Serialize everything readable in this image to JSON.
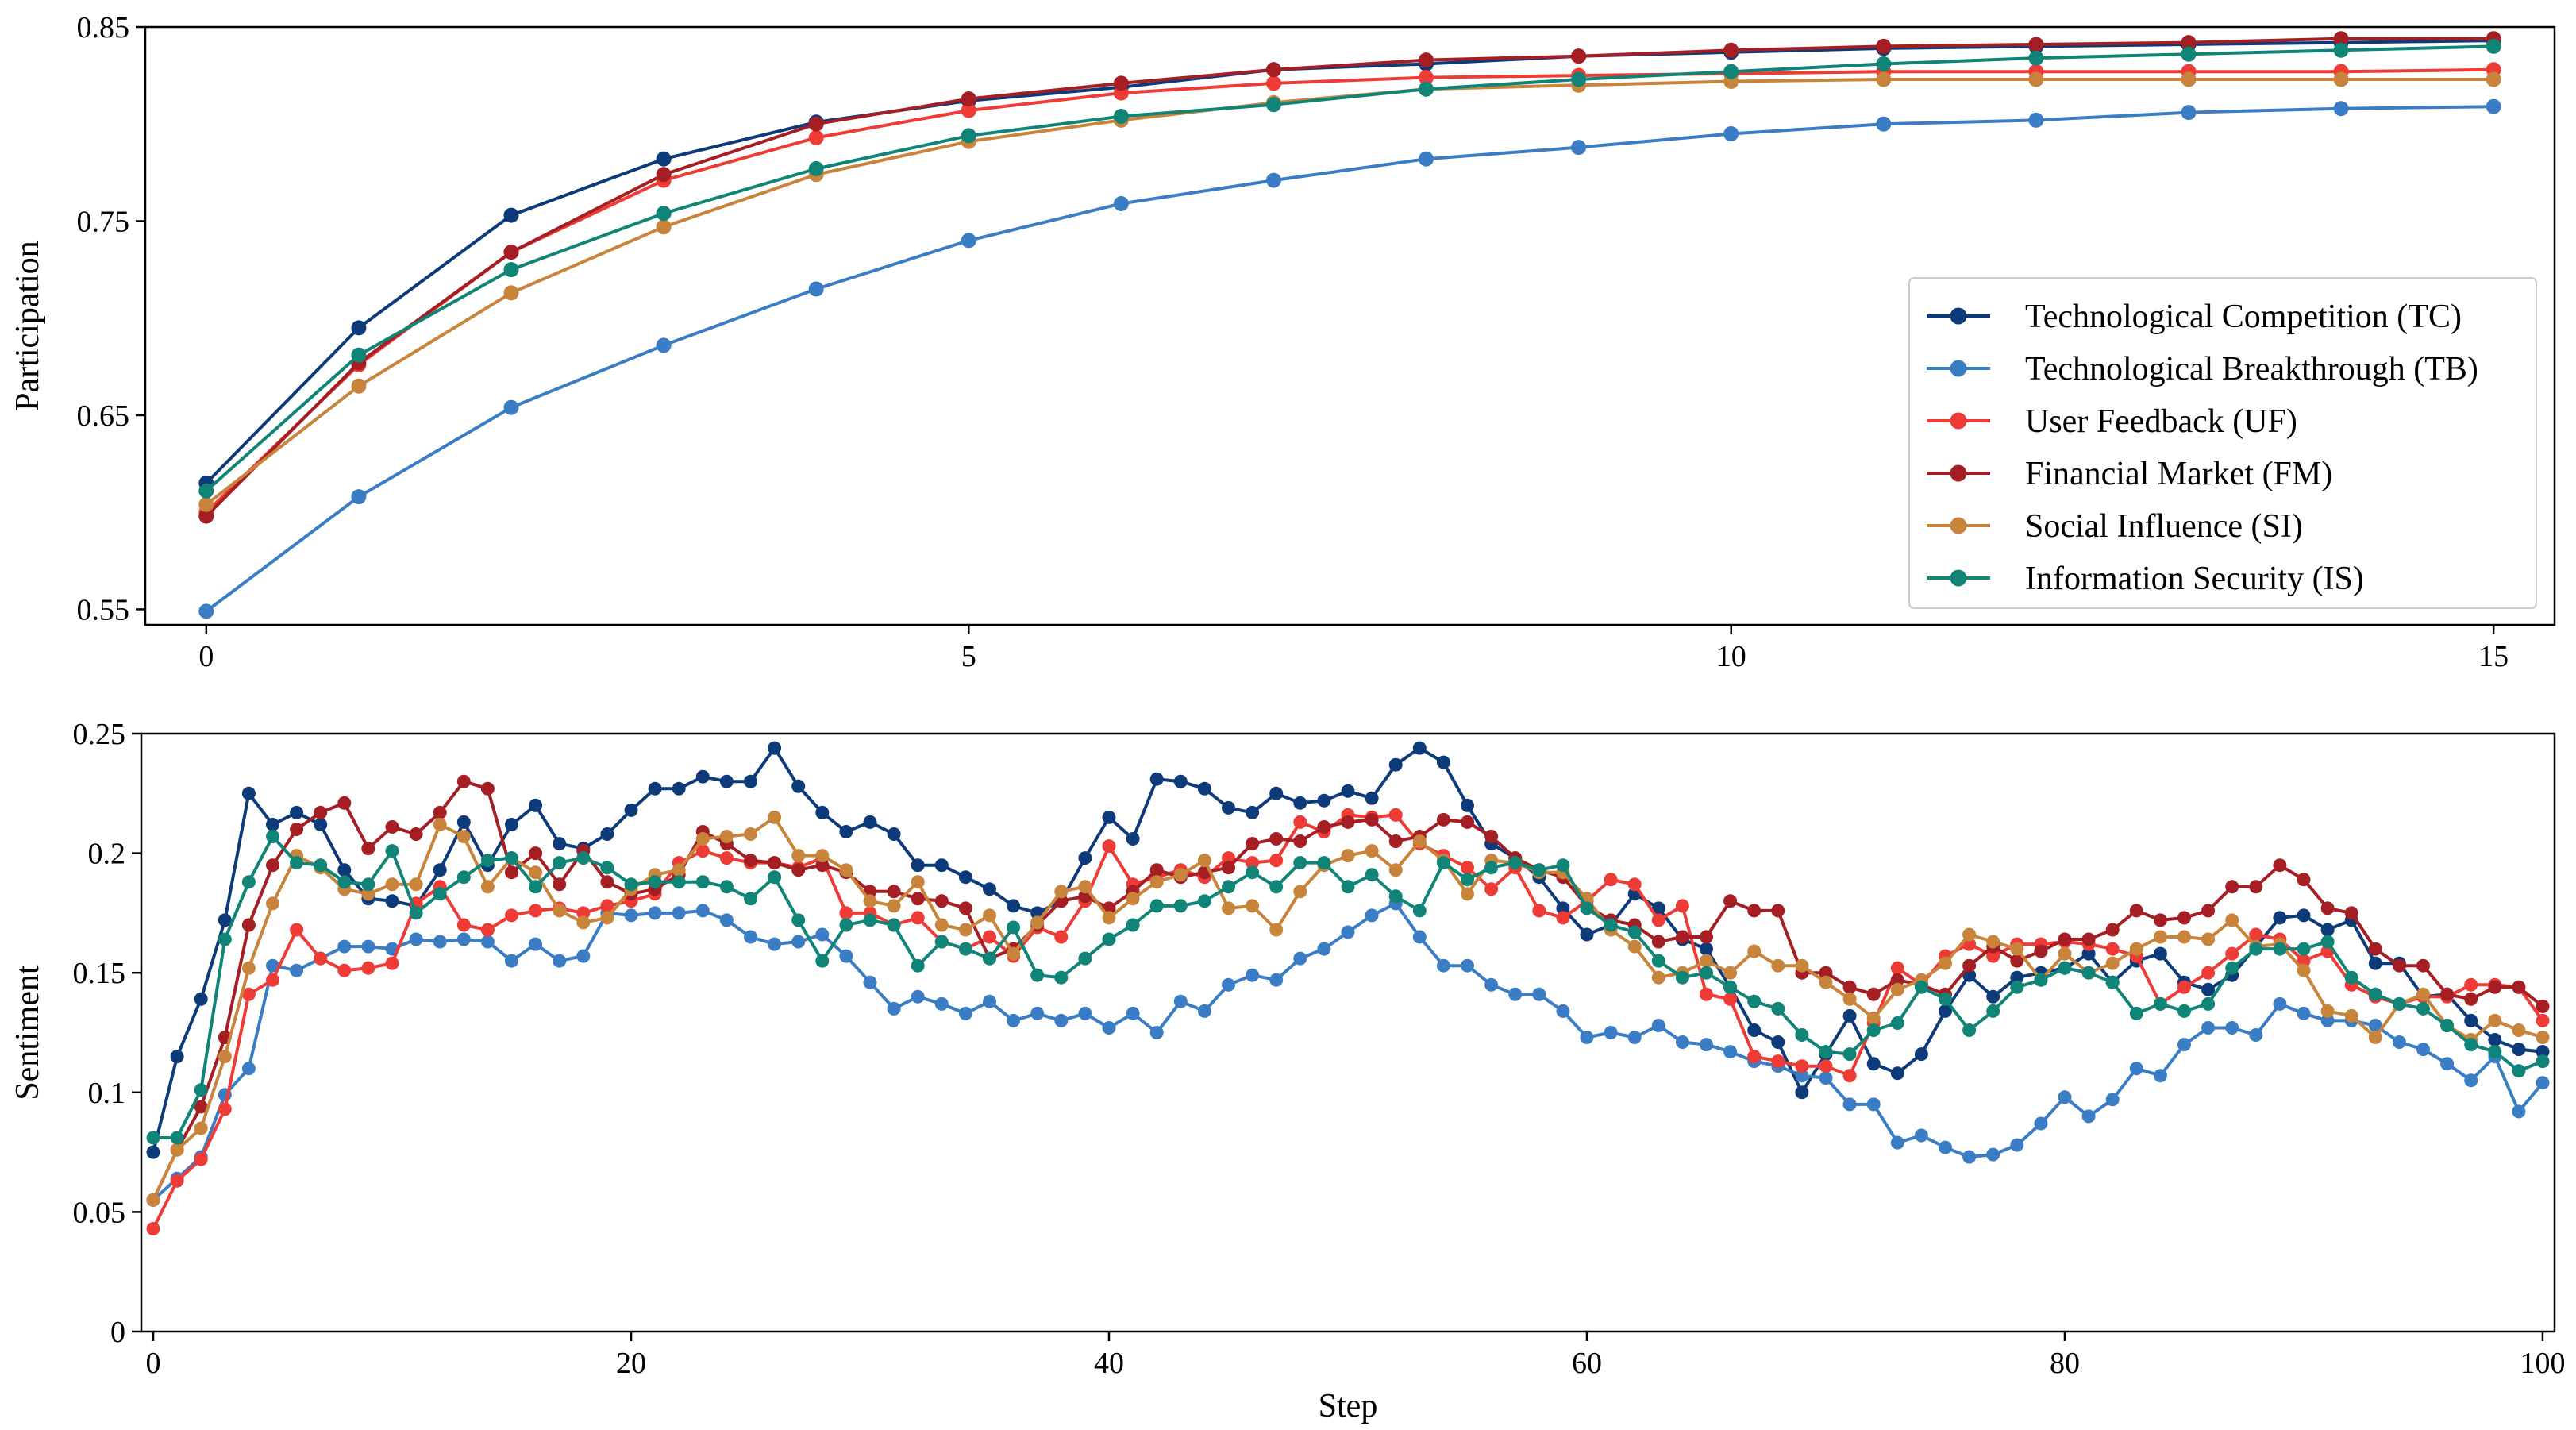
{
  "chart_data": [
    {
      "type": "line",
      "title": "",
      "xlabel": "",
      "ylabel": "Participation",
      "xlim": [
        -0.4,
        15.4
      ],
      "ylim": [
        0.542,
        0.85
      ],
      "xticks": [
        0,
        5,
        10,
        15
      ],
      "xtick_labels": [
        "0",
        "5",
        "10",
        "15"
      ],
      "yticks": [
        0.55,
        0.65,
        0.75,
        0.85
      ],
      "ytick_labels": [
        "0.55",
        "0.65",
        "0.75",
        "0.85"
      ],
      "legend_position": "lower-right",
      "x": [
        0,
        1,
        2,
        3,
        4,
        5,
        6,
        7,
        8,
        9,
        10,
        11,
        12,
        13,
        14,
        15
      ],
      "series": [
        {
          "name": "Technological Competition (TC)",
          "color": "#0d3b7a",
          "values": [
            0.615,
            0.695,
            0.753,
            0.782,
            0.801,
            0.812,
            0.819,
            0.828,
            0.831,
            0.835,
            0.837,
            0.839,
            0.84,
            0.841,
            0.842,
            0.843
          ]
        },
        {
          "name": "Technological Breakthrough (TB)",
          "color": "#3a7dc4",
          "values": [
            0.549,
            0.608,
            0.654,
            0.686,
            0.715,
            0.74,
            0.759,
            0.771,
            0.782,
            0.788,
            0.795,
            0.8,
            0.802,
            0.806,
            0.808,
            0.809
          ]
        },
        {
          "name": "User Feedback (UF)",
          "color": "#ee3b36",
          "values": [
            0.6,
            0.676,
            0.734,
            0.771,
            0.793,
            0.807,
            0.816,
            0.821,
            0.824,
            0.825,
            0.826,
            0.827,
            0.827,
            0.827,
            0.827,
            0.828
          ]
        },
        {
          "name": "Financial Market (FM)",
          "color": "#a51e23",
          "values": [
            0.598,
            0.677,
            0.734,
            0.774,
            0.8,
            0.813,
            0.821,
            0.828,
            0.833,
            0.835,
            0.838,
            0.84,
            0.841,
            0.842,
            0.844,
            0.844
          ]
        },
        {
          "name": "Social Influence (SI)",
          "color": "#c8843b",
          "values": [
            0.604,
            0.665,
            0.713,
            0.747,
            0.774,
            0.791,
            0.802,
            0.811,
            0.818,
            0.82,
            0.822,
            0.823,
            0.823,
            0.823,
            0.823,
            0.823
          ]
        },
        {
          "name": "Information Security (IS)",
          "color": "#108476",
          "values": [
            0.611,
            0.681,
            0.725,
            0.754,
            0.777,
            0.794,
            0.804,
            0.81,
            0.818,
            0.823,
            0.827,
            0.831,
            0.834,
            0.836,
            0.838,
            0.84
          ]
        }
      ]
    },
    {
      "type": "line",
      "title": "",
      "xlabel": "Step",
      "ylabel": "Sentiment",
      "xlim": [
        -0.5,
        100.5
      ],
      "ylim": [
        0,
        0.25
      ],
      "xticks": [
        0,
        20,
        40,
        60,
        80,
        100
      ],
      "xtick_labels": [
        "0",
        "20",
        "40",
        "60",
        "80",
        "100"
      ],
      "yticks": [
        0,
        0.05,
        0.1,
        0.15,
        0.2,
        0.25
      ],
      "ytick_labels": [
        "0",
        "0.05",
        "0.1",
        "0.15",
        "0.2",
        "0.25"
      ],
      "x_start": 0,
      "x_step": 1,
      "series": [
        {
          "name": "Technological Competition (TC)",
          "color": "#0d3b7a",
          "values": [
            0.075,
            0.115,
            0.139,
            0.172,
            0.225,
            0.212,
            0.217,
            0.212,
            0.193,
            0.181,
            0.18,
            0.178,
            0.193,
            0.213,
            0.195,
            0.212,
            0.22,
            0.204,
            0.202,
            0.208,
            0.218,
            0.227,
            0.227,
            0.232,
            0.23,
            0.23,
            0.244,
            0.228,
            0.217,
            0.209,
            0.213,
            0.208,
            0.195,
            0.195,
            0.19,
            0.185,
            0.178,
            0.175,
            0.18,
            0.198,
            0.215,
            0.206,
            0.231,
            0.23,
            0.227,
            0.219,
            0.217,
            0.225,
            0.221,
            0.222,
            0.226,
            0.223,
            0.237,
            0.244,
            0.238,
            0.22,
            0.204,
            0.198,
            0.19,
            0.177,
            0.166,
            0.17,
            0.183,
            0.177,
            0.164,
            0.16,
            0.144,
            0.126,
            0.121,
            0.1,
            0.116,
            0.132,
            0.112,
            0.108,
            0.116,
            0.134,
            0.149,
            0.14,
            0.148,
            0.15,
            0.152,
            0.158,
            0.146,
            0.155,
            0.158,
            0.146,
            0.143,
            0.149,
            0.161,
            0.173,
            0.174,
            0.168,
            0.172,
            0.154,
            0.154,
            0.14,
            0.141,
            0.13,
            0.122,
            0.118,
            0.117
          ]
        },
        {
          "name": "Technological Breakthrough (TB)",
          "color": "#3a7dc4",
          "values": [
            0.055,
            0.064,
            0.073,
            0.099,
            0.11,
            0.153,
            0.151,
            0.156,
            0.161,
            0.161,
            0.16,
            0.164,
            0.163,
            0.164,
            0.163,
            0.155,
            0.162,
            0.155,
            0.157,
            0.175,
            0.174,
            0.175,
            0.175,
            0.176,
            0.172,
            0.165,
            0.162,
            0.163,
            0.166,
            0.157,
            0.146,
            0.135,
            0.14,
            0.137,
            0.133,
            0.138,
            0.13,
            0.133,
            0.13,
            0.133,
            0.127,
            0.133,
            0.125,
            0.138,
            0.134,
            0.145,
            0.149,
            0.147,
            0.156,
            0.16,
            0.167,
            0.174,
            0.179,
            0.165,
            0.153,
            0.153,
            0.145,
            0.141,
            0.141,
            0.134,
            0.123,
            0.125,
            0.123,
            0.128,
            0.121,
            0.12,
            0.117,
            0.113,
            0.111,
            0.107,
            0.106,
            0.095,
            0.095,
            0.079,
            0.082,
            0.077,
            0.073,
            0.074,
            0.078,
            0.087,
            0.098,
            0.09,
            0.097,
            0.11,
            0.107,
            0.12,
            0.127,
            0.127,
            0.124,
            0.137,
            0.133,
            0.13,
            0.13,
            0.128,
            0.121,
            0.118,
            0.112,
            0.105,
            0.115,
            0.092,
            0.104
          ]
        },
        {
          "name": "User Feedback (UF)",
          "color": "#ee3b36",
          "values": [
            0.043,
            0.063,
            0.072,
            0.093,
            0.141,
            0.147,
            0.168,
            0.156,
            0.151,
            0.152,
            0.154,
            0.179,
            0.186,
            0.17,
            0.168,
            0.174,
            0.176,
            0.177,
            0.175,
            0.178,
            0.18,
            0.183,
            0.196,
            0.201,
            0.198,
            0.196,
            0.196,
            0.194,
            0.198,
            0.175,
            0.175,
            0.17,
            0.173,
            0.163,
            0.16,
            0.165,
            0.157,
            0.169,
            0.165,
            0.18,
            0.203,
            0.187,
            0.19,
            0.193,
            0.19,
            0.198,
            0.196,
            0.197,
            0.213,
            0.209,
            0.216,
            0.215,
            0.216,
            0.204,
            0.199,
            0.194,
            0.185,
            0.194,
            0.176,
            0.173,
            0.18,
            0.189,
            0.187,
            0.172,
            0.178,
            0.141,
            0.139,
            0.115,
            0.113,
            0.111,
            0.111,
            0.107,
            0.129,
            0.152,
            0.145,
            0.157,
            0.162,
            0.157,
            0.162,
            0.162,
            0.163,
            0.162,
            0.16,
            0.157,
            0.137,
            0.144,
            0.15,
            0.158,
            0.166,
            0.164,
            0.155,
            0.159,
            0.145,
            0.14,
            0.137,
            0.14,
            0.14,
            0.145,
            0.145,
            0.144,
            0.13
          ]
        },
        {
          "name": "Financial Market (FM)",
          "color": "#a51e23",
          "values": [
            0.055,
            0.076,
            0.094,
            0.123,
            0.17,
            0.195,
            0.21,
            0.217,
            0.221,
            0.202,
            0.211,
            0.208,
            0.217,
            0.23,
            0.227,
            0.192,
            0.2,
            0.187,
            0.201,
            0.188,
            0.183,
            0.185,
            0.191,
            0.209,
            0.204,
            0.197,
            0.196,
            0.193,
            0.195,
            0.192,
            0.184,
            0.184,
            0.181,
            0.18,
            0.177,
            0.156,
            0.16,
            0.17,
            0.18,
            0.182,
            0.177,
            0.184,
            0.193,
            0.19,
            0.192,
            0.194,
            0.204,
            0.206,
            0.205,
            0.211,
            0.213,
            0.214,
            0.205,
            0.207,
            0.214,
            0.213,
            0.207,
            0.198,
            0.193,
            0.19,
            0.178,
            0.172,
            0.17,
            0.163,
            0.165,
            0.165,
            0.18,
            0.176,
            0.176,
            0.15,
            0.15,
            0.144,
            0.141,
            0.147,
            0.145,
            0.141,
            0.153,
            0.161,
            0.155,
            0.159,
            0.164,
            0.164,
            0.168,
            0.176,
            0.172,
            0.173,
            0.176,
            0.186,
            0.186,
            0.195,
            0.189,
            0.177,
            0.175,
            0.16,
            0.153,
            0.153,
            0.141,
            0.139,
            0.144,
            0.144,
            0.136
          ]
        },
        {
          "name": "Social Influence (SI)",
          "color": "#c8843b",
          "values": [
            0.055,
            0.076,
            0.085,
            0.115,
            0.152,
            0.179,
            0.199,
            0.194,
            0.185,
            0.183,
            0.187,
            0.187,
            0.212,
            0.207,
            0.186,
            0.198,
            0.192,
            0.176,
            0.171,
            0.173,
            0.185,
            0.191,
            0.193,
            0.206,
            0.207,
            0.208,
            0.215,
            0.199,
            0.199,
            0.193,
            0.18,
            0.178,
            0.188,
            0.17,
            0.168,
            0.174,
            0.158,
            0.171,
            0.184,
            0.186,
            0.173,
            0.181,
            0.188,
            0.191,
            0.197,
            0.177,
            0.178,
            0.168,
            0.184,
            0.195,
            0.199,
            0.201,
            0.193,
            0.205,
            0.197,
            0.183,
            0.197,
            0.196,
            0.192,
            0.192,
            0.181,
            0.168,
            0.161,
            0.148,
            0.15,
            0.155,
            0.15,
            0.159,
            0.153,
            0.153,
            0.146,
            0.139,
            0.131,
            0.143,
            0.147,
            0.154,
            0.166,
            0.163,
            0.16,
            0.147,
            0.158,
            0.15,
            0.154,
            0.16,
            0.165,
            0.165,
            0.164,
            0.172,
            0.161,
            0.162,
            0.151,
            0.134,
            0.132,
            0.123,
            0.137,
            0.141,
            0.128,
            0.122,
            0.13,
            0.126,
            0.123
          ]
        },
        {
          "name": "Information Security (IS)",
          "color": "#108476",
          "values": [
            0.081,
            0.081,
            0.101,
            0.164,
            0.188,
            0.207,
            0.196,
            0.195,
            0.188,
            0.187,
            0.201,
            0.175,
            0.183,
            0.19,
            0.197,
            0.198,
            0.186,
            0.196,
            0.198,
            0.194,
            0.187,
            0.188,
            0.188,
            0.188,
            0.186,
            0.181,
            0.19,
            0.172,
            0.155,
            0.17,
            0.172,
            0.17,
            0.153,
            0.163,
            0.16,
            0.156,
            0.169,
            0.149,
            0.148,
            0.156,
            0.164,
            0.17,
            0.178,
            0.178,
            0.18,
            0.186,
            0.192,
            0.186,
            0.196,
            0.196,
            0.186,
            0.191,
            0.182,
            0.176,
            0.196,
            0.189,
            0.194,
            0.196,
            0.193,
            0.195,
            0.177,
            0.17,
            0.167,
            0.155,
            0.148,
            0.15,
            0.144,
            0.138,
            0.135,
            0.124,
            0.117,
            0.116,
            0.126,
            0.129,
            0.144,
            0.139,
            0.126,
            0.134,
            0.144,
            0.147,
            0.152,
            0.15,
            0.146,
            0.133,
            0.137,
            0.134,
            0.137,
            0.152,
            0.16,
            0.16,
            0.16,
            0.163,
            0.148,
            0.141,
            0.137,
            0.135,
            0.128,
            0.12,
            0.117,
            0.109,
            0.113
          ]
        }
      ]
    }
  ]
}
